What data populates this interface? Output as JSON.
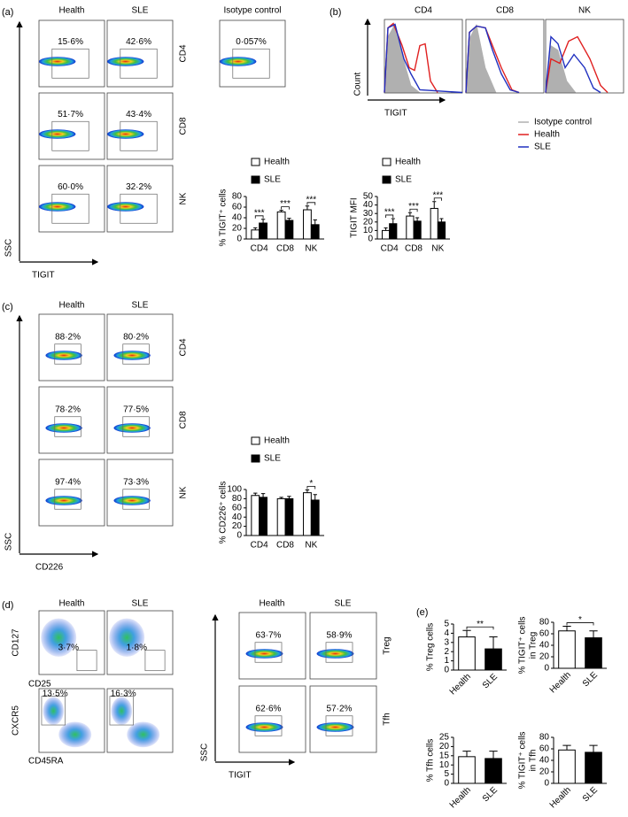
{
  "panel_labels": {
    "a": "(a)",
    "b": "(b)",
    "c": "(c)",
    "d": "(d)",
    "e": "(e)"
  },
  "flow_a": {
    "columns": [
      "Health",
      "SLE",
      "Isotype control"
    ],
    "rows": [
      "CD4",
      "CD8",
      "NK"
    ],
    "gates": [
      [
        "15·6%",
        "42·6%",
        "0·057%"
      ],
      [
        "51·7%",
        "43·4%"
      ],
      [
        "60·0%",
        "32·2%"
      ]
    ],
    "y_axis": "SSC",
    "x_axis": "TIGIT"
  },
  "histograms": {
    "panels": [
      "CD4",
      "CD8",
      "NK"
    ],
    "y_axis": "Count",
    "x_axis": "TIGIT",
    "legend": [
      "Isotype control",
      "Health",
      "SLE"
    ]
  },
  "flow_c": {
    "columns": [
      "Health",
      "SLE"
    ],
    "rows": [
      "CD4",
      "CD8",
      "NK"
    ],
    "gates": [
      [
        "88·2%",
        "80·2%"
      ],
      [
        "78·2%",
        "77·5%"
      ],
      [
        "97·4%",
        "73·3%"
      ]
    ],
    "y_axis": "SSC",
    "x_axis": "CD226"
  },
  "flow_d_left": {
    "columns": [
      "Health",
      "SLE"
    ],
    "rows": [
      {
        "y_axis": "CD127",
        "x_axis": "CD25",
        "gates": [
          "3·7%",
          "1·8%"
        ]
      },
      {
        "y_axis": "CXCR5",
        "x_axis": "CD45RA",
        "gates": [
          "13·5%",
          "16·3%"
        ]
      }
    ]
  },
  "flow_d_right": {
    "columns": [
      "Health",
      "SLE"
    ],
    "rows": [
      "Treg",
      "Tfh"
    ],
    "gates": [
      [
        "63·7%",
        "58·9%"
      ],
      [
        "62·6%",
        "57·2%"
      ]
    ],
    "y_axis": "SSC",
    "x_axis": "TIGIT"
  },
  "chart_data": [
    {
      "type": "bar",
      "y_label": [
        "% TIGIT⁺ cells"
      ],
      "categories": [
        "CD4",
        "CD8",
        "NK"
      ],
      "series": [
        {
          "name": "Health",
          "color": "#ffffff",
          "values": [
            17,
            51,
            55
          ],
          "errors": [
            4,
            3,
            7
          ]
        },
        {
          "name": "SLE",
          "color": "#000000",
          "values": [
            30,
            35,
            27
          ],
          "errors": [
            7,
            4,
            9
          ]
        }
      ],
      "ylim": [
        0,
        80
      ],
      "yticks": [
        0,
        20,
        40,
        60,
        80
      ],
      "annotations": [
        "***",
        "***",
        "***"
      ]
    },
    {
      "type": "bar",
      "y_label": [
        "TIGIT MFI"
      ],
      "categories": [
        "CD4",
        "CD8",
        "NK"
      ],
      "series": [
        {
          "name": "Health",
          "color": "#ffffff",
          "values": [
            10,
            27,
            36
          ],
          "errors": [
            3,
            4,
            8
          ]
        },
        {
          "name": "SLE",
          "color": "#000000",
          "values": [
            18,
            21,
            20
          ],
          "errors": [
            6,
            4,
            4
          ]
        }
      ],
      "ylim": [
        0,
        50
      ],
      "yticks": [
        0,
        10,
        20,
        30,
        40,
        50
      ],
      "annotations": [
        "***",
        "***",
        "***"
      ]
    },
    {
      "type": "bar",
      "y_label": [
        "% CD226⁺ cells"
      ],
      "categories": [
        "CD4",
        "CD8",
        "NK"
      ],
      "series": [
        {
          "name": "Health",
          "color": "#ffffff",
          "values": [
            87,
            80,
            93
          ],
          "errors": [
            5,
            3,
            6
          ]
        },
        {
          "name": "SLE",
          "color": "#000000",
          "values": [
            83,
            80,
            77
          ],
          "errors": [
            8,
            5,
            12
          ]
        }
      ],
      "ylim": [
        0,
        100
      ],
      "yticks": [
        0,
        20,
        40,
        60,
        80,
        100
      ],
      "annotations": [
        "*"
      ]
    },
    {
      "type": "bar",
      "y_label": [
        "% Treg cells"
      ],
      "categories": [
        "Health",
        "SLE"
      ],
      "colors": [
        "#ffffff",
        "#000000"
      ],
      "values": [
        3.6,
        2.3
      ],
      "errors": [
        0.7,
        1.3
      ],
      "ylim": [
        0,
        5
      ],
      "yticks": [
        0,
        1,
        2,
        3,
        4,
        5
      ],
      "annotations": [
        "**"
      ]
    },
    {
      "type": "bar",
      "y_label": [
        "% TIGIT⁺ cells",
        "in Treg"
      ],
      "categories": [
        "Health",
        "SLE"
      ],
      "colors": [
        "#ffffff",
        "#000000"
      ],
      "values": [
        65,
        53
      ],
      "errors": [
        8,
        12
      ],
      "ylim": [
        0,
        80
      ],
      "yticks": [
        0,
        20,
        40,
        60,
        80
      ],
      "annotations": [
        "*"
      ]
    },
    {
      "type": "bar",
      "y_label": [
        "% Tfh cells"
      ],
      "categories": [
        "Health",
        "SLE"
      ],
      "colors": [
        "#ffffff",
        "#000000"
      ],
      "values": [
        14.5,
        13.5
      ],
      "errors": [
        3,
        4
      ],
      "ylim": [
        0,
        25
      ],
      "yticks": [
        0,
        5,
        10,
        15,
        20,
        25
      ]
    },
    {
      "type": "bar",
      "y_label": [
        "% TIGIT⁺ cells",
        "in Tfh"
      ],
      "categories": [
        "Health",
        "SLE"
      ],
      "colors": [
        "#ffffff",
        "#000000"
      ],
      "values": [
        58,
        54
      ],
      "errors": [
        8,
        12
      ],
      "ylim": [
        0,
        80
      ],
      "yticks": [
        0,
        20,
        40,
        60,
        80
      ]
    }
  ]
}
